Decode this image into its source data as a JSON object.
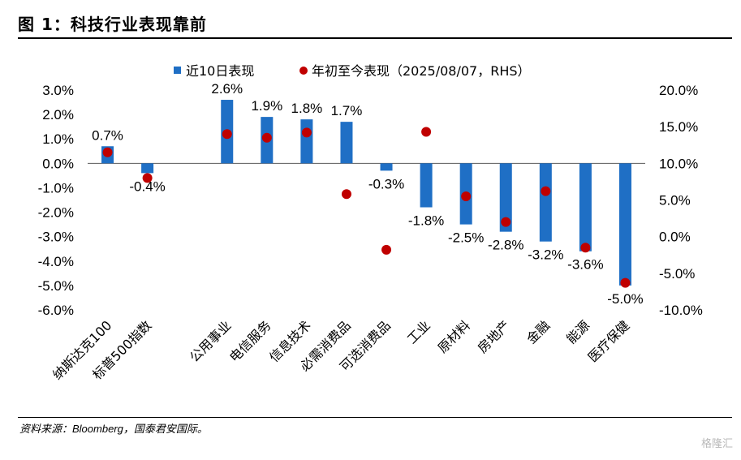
{
  "figure": {
    "title": "图 1：科技行业表现靠前",
    "source": "资料来源：Bloomberg，国泰君安国际。",
    "watermark": "格隆汇"
  },
  "chart_data": {
    "type": "bar",
    "categories": [
      "纳斯达克100",
      "标普500指数",
      "",
      "公用事业",
      "电信服务",
      "信息技术",
      "必需消费品",
      "可选消费品",
      "工业",
      "原材料",
      "房地产",
      "金融",
      "能源",
      "医疗保健"
    ],
    "series": [
      {
        "name": "近10日表现",
        "type": "bar",
        "axis": "left",
        "color": "#1f6fc5",
        "values": [
          0.7,
          -0.4,
          null,
          2.6,
          1.9,
          1.8,
          1.7,
          -0.3,
          -1.8,
          -2.5,
          -2.8,
          -3.2,
          -3.6,
          -5.0
        ],
        "labels": [
          "0.7%",
          "-0.4%",
          "",
          "2.6%",
          "1.9%",
          "1.8%",
          "1.7%",
          "-0.3%",
          "-1.8%",
          "-2.5%",
          "-2.8%",
          "-3.2%",
          "-3.6%",
          "-5.0%"
        ]
      },
      {
        "name": "年初至今表现（2025/08/07，RHS）",
        "type": "scatter",
        "axis": "right",
        "color": "#c00000",
        "values": [
          11.5,
          8.0,
          null,
          14.0,
          13.5,
          14.2,
          5.8,
          -1.8,
          14.3,
          5.5,
          2.0,
          6.2,
          -1.5,
          -6.3
        ]
      }
    ],
    "y_left": {
      "min": -6.0,
      "max": 3.0,
      "ticks": [
        "3.0%",
        "2.0%",
        "1.0%",
        "0.0%",
        "-1.0%",
        "-2.0%",
        "-3.0%",
        "-4.0%",
        "-5.0%",
        "-6.0%"
      ]
    },
    "y_right": {
      "min": -10.0,
      "max": 20.0,
      "ticks": [
        "20.0%",
        "15.0%",
        "10.0%",
        "5.0%",
        "0.0%",
        "-5.0%",
        "-10.0%"
      ]
    },
    "grid": false,
    "legend_position": "top"
  }
}
